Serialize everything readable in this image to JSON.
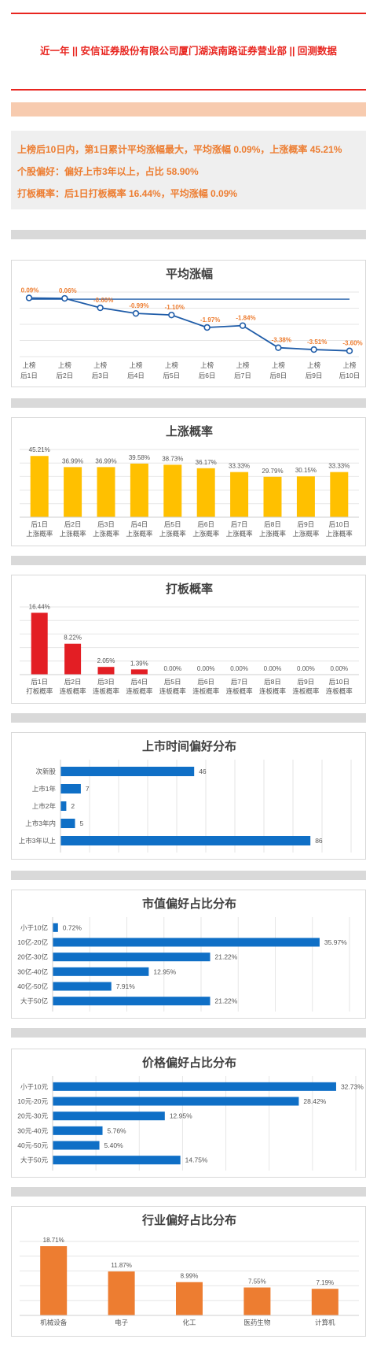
{
  "header": {
    "title": "近一年  ||  安信证券股份有限公司厦门湖滨南路证券营业部  ||  回测数据"
  },
  "summary": {
    "line1": "上榜后10日内，第1日累计平均涨幅最大，平均涨幅 0.09%，上涨概率 45.21%",
    "line2": "个股偏好：偏好上市3年以上，占比 58.90%",
    "line3": "打板概率：后1日打板概率 16.44%，平均涨幅 0.09%"
  },
  "colors": {
    "red_line": "#e8251f",
    "orange_text": "#ed7d31",
    "line_blue": "#1f5ca8",
    "bar_yellow": "#ffc000",
    "bar_red": "#e31e24",
    "bar_blue": "#0f6fc6",
    "bar_orange": "#ed7d31"
  },
  "chart_data": [
    {
      "type": "line",
      "title": "平均涨幅",
      "categories": [
        [
          "上榜",
          "后1日"
        ],
        [
          "上榜",
          "后2日"
        ],
        [
          "上榜",
          "后3日"
        ],
        [
          "上榜",
          "后4日"
        ],
        [
          "上榜",
          "后5日"
        ],
        [
          "上榜",
          "后6日"
        ],
        [
          "上榜",
          "后7日"
        ],
        [
          "上榜",
          "后8日"
        ],
        [
          "上榜",
          "后9日"
        ],
        [
          "上榜",
          "后10日"
        ]
      ],
      "values": [
        0.09,
        0.06,
        -0.6,
        -0.99,
        -1.1,
        -1.97,
        -1.84,
        -3.38,
        -3.51,
        -3.6
      ],
      "labels": [
        "0.09%",
        "0.06%",
        "-0.60%",
        "-0.99%",
        "-1.10%",
        "-1.97%",
        "-1.84%",
        "-3.38%",
        "-3.51%",
        "-3.60%"
      ],
      "ylim": [
        -4,
        0.5
      ],
      "grid": true
    },
    {
      "type": "bar",
      "title": "上涨概率",
      "categories": [
        [
          "后1日",
          "上涨概率"
        ],
        [
          "后2日",
          "上涨概率"
        ],
        [
          "后3日",
          "上涨概率"
        ],
        [
          "后4日",
          "上涨概率"
        ],
        [
          "后5日",
          "上涨概率"
        ],
        [
          "后6日",
          "上涨概率"
        ],
        [
          "后7日",
          "上涨概率"
        ],
        [
          "后8日",
          "上涨概率"
        ],
        [
          "后9日",
          "上涨概率"
        ],
        [
          "后10日",
          "上涨概率"
        ]
      ],
      "values": [
        45.21,
        36.99,
        36.99,
        39.58,
        38.73,
        36.17,
        33.33,
        29.79,
        30.15,
        33.33
      ],
      "labels": [
        "45.21%",
        "36.99%",
        "36.99%",
        "39.58%",
        "38.73%",
        "36.17%",
        "33.33%",
        "29.79%",
        "30.15%",
        "33.33%"
      ],
      "ylim": [
        0,
        50
      ],
      "grid": true
    },
    {
      "type": "bar",
      "title": "打板概率",
      "categories": [
        [
          "后1日",
          "打板概率"
        ],
        [
          "后2日",
          "连板概率"
        ],
        [
          "后3日",
          "连板概率"
        ],
        [
          "后4日",
          "连板概率"
        ],
        [
          "后5日",
          "连板概率"
        ],
        [
          "后6日",
          "连板概率"
        ],
        [
          "后7日",
          "连板概率"
        ],
        [
          "后8日",
          "连板概率"
        ],
        [
          "后9日",
          "连板概率"
        ],
        [
          "后10日",
          "连板概率"
        ]
      ],
      "values": [
        16.44,
        8.22,
        2.05,
        1.39,
        0,
        0,
        0,
        0,
        0,
        0
      ],
      "labels": [
        "16.44%",
        "8.22%",
        "2.05%",
        "1.39%",
        "0.00%",
        "0.00%",
        "0.00%",
        "0.00%",
        "0.00%",
        "0.00%"
      ],
      "ylim": [
        0,
        18
      ],
      "grid": true
    },
    {
      "type": "bar",
      "orientation": "horizontal",
      "title": "上市时间偏好分布",
      "categories": [
        "次新股",
        "上市1年",
        "上市2年",
        "上市3年内",
        "上市3年以上"
      ],
      "values": [
        46,
        7,
        2,
        5,
        86
      ],
      "labels": [
        "46",
        "7",
        "2",
        "5",
        "86"
      ],
      "xlim": [
        0,
        100
      ],
      "grid": true
    },
    {
      "type": "bar",
      "orientation": "horizontal",
      "title": "市值偏好占比分布",
      "categories": [
        "小于10亿",
        "10亿-20亿",
        "20亿-30亿",
        "30亿-40亿",
        "40亿-50亿",
        "大于50亿"
      ],
      "values": [
        0.72,
        35.97,
        21.22,
        12.95,
        7.91,
        21.22
      ],
      "labels": [
        "0.72%",
        "35.97%",
        "21.22%",
        "12.95%",
        "7.91%",
        "21.22%"
      ],
      "xlim": [
        0,
        40
      ],
      "grid": true
    },
    {
      "type": "bar",
      "orientation": "horizontal",
      "title": "价格偏好占比分布",
      "categories": [
        "小于10元",
        "10元-20元",
        "20元-30元",
        "30元-40元",
        "40元-50元",
        "大于50元"
      ],
      "values": [
        32.73,
        28.42,
        12.95,
        5.76,
        5.4,
        14.75
      ],
      "labels": [
        "32.73%",
        "28.42%",
        "12.95%",
        "5.76%",
        "5.40%",
        "14.75%"
      ],
      "xlim": [
        0,
        35
      ],
      "grid": true
    },
    {
      "type": "bar",
      "title": "行业偏好占比分布",
      "categories": [
        [
          "机械设备"
        ],
        [
          "电子"
        ],
        [
          "化工"
        ],
        [
          "医药生物"
        ],
        [
          "计算机"
        ]
      ],
      "values": [
        18.71,
        11.87,
        8.99,
        7.55,
        7.19
      ],
      "labels": [
        "18.71%",
        "11.87%",
        "8.99%",
        "7.55%",
        "7.19%"
      ],
      "ylim": [
        0,
        20
      ],
      "grid": true
    }
  ]
}
